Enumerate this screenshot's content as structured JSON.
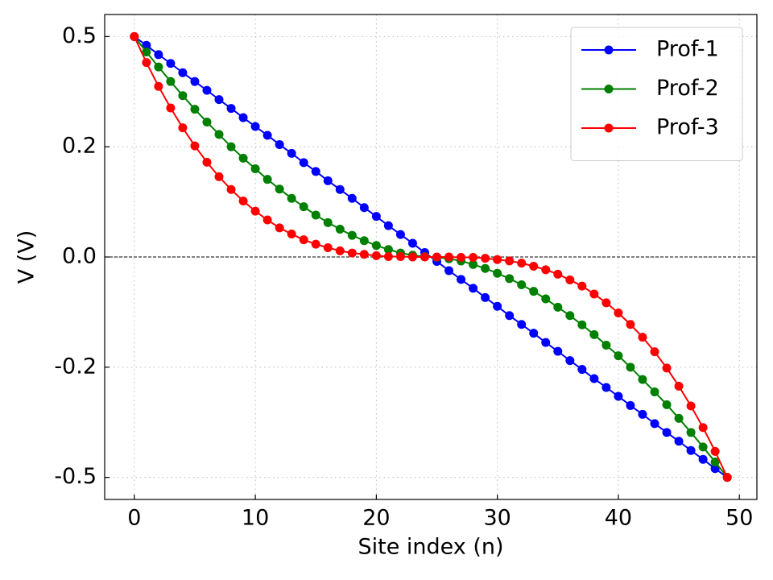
{
  "chart_data": {
    "type": "line",
    "xlabel": "Site index (n)",
    "ylabel": "V (V)",
    "x": [
      0,
      1,
      2,
      3,
      4,
      5,
      6,
      7,
      8,
      9,
      10,
      11,
      12,
      13,
      14,
      15,
      16,
      17,
      18,
      19,
      20,
      21,
      22,
      23,
      24,
      25,
      26,
      27,
      28,
      29,
      30,
      31,
      32,
      33,
      34,
      35,
      36,
      37,
      38,
      39,
      40,
      41,
      42,
      43,
      44,
      45,
      46,
      47,
      48,
      49
    ],
    "series": [
      {
        "name": "Prof-1",
        "color": "#0000ff",
        "values": [
          0.5,
          0.48,
          0.459,
          0.439,
          0.418,
          0.398,
          0.378,
          0.357,
          0.337,
          0.316,
          0.296,
          0.276,
          0.255,
          0.235,
          0.214,
          0.194,
          0.173,
          0.153,
          0.133,
          0.112,
          0.092,
          0.071,
          0.051,
          0.031,
          0.01,
          -0.01,
          -0.031,
          -0.051,
          -0.071,
          -0.092,
          -0.112,
          -0.133,
          -0.153,
          -0.173,
          -0.194,
          -0.214,
          -0.235,
          -0.255,
          -0.276,
          -0.296,
          -0.316,
          -0.337,
          -0.357,
          -0.378,
          -0.398,
          -0.418,
          -0.439,
          -0.459,
          -0.48,
          -0.5
        ]
      },
      {
        "name": "Prof-2",
        "color": "#008000",
        "values": [
          0.5,
          0.465,
          0.431,
          0.398,
          0.366,
          0.335,
          0.306,
          0.278,
          0.25,
          0.224,
          0.2,
          0.176,
          0.154,
          0.133,
          0.114,
          0.095,
          0.078,
          0.063,
          0.049,
          0.037,
          0.026,
          0.017,
          0.009,
          0.004,
          0.001,
          -0.001,
          -0.004,
          -0.009,
          -0.017,
          -0.026,
          -0.037,
          -0.049,
          -0.063,
          -0.078,
          -0.095,
          -0.114,
          -0.133,
          -0.154,
          -0.176,
          -0.2,
          -0.224,
          -0.25,
          -0.278,
          -0.306,
          -0.335,
          -0.366,
          -0.398,
          -0.431,
          -0.465,
          -0.5
        ]
      },
      {
        "name": "Prof-3",
        "color": "#ff0000",
        "values": [
          0.5,
          0.441,
          0.387,
          0.338,
          0.293,
          0.252,
          0.215,
          0.182,
          0.153,
          0.127,
          0.104,
          0.084,
          0.066,
          0.052,
          0.039,
          0.029,
          0.021,
          0.014,
          0.009,
          0.006,
          0.003,
          0.001,
          0.001,
          0,
          0,
          0,
          0,
          -0.001,
          -0.001,
          -0.003,
          -0.006,
          -0.009,
          -0.014,
          -0.021,
          -0.029,
          -0.039,
          -0.052,
          -0.066,
          -0.084,
          -0.104,
          -0.127,
          -0.153,
          -0.182,
          -0.215,
          -0.252,
          -0.293,
          -0.338,
          -0.387,
          -0.441,
          -0.5
        ]
      }
    ],
    "xlim": [
      -2.45,
      51.45
    ],
    "ylim": [
      -0.55,
      0.55
    ],
    "xticks": [
      0,
      10,
      20,
      30,
      40,
      50
    ],
    "yticks": [
      0.5,
      {
        "value": 0.25,
        "label": "0.2"
      },
      {
        "value": 0,
        "label": "0.0"
      },
      {
        "value": -0.25,
        "label": "-0.2"
      },
      -0.5
    ],
    "grid": true,
    "zero_line": true,
    "legend": "upper right"
  }
}
